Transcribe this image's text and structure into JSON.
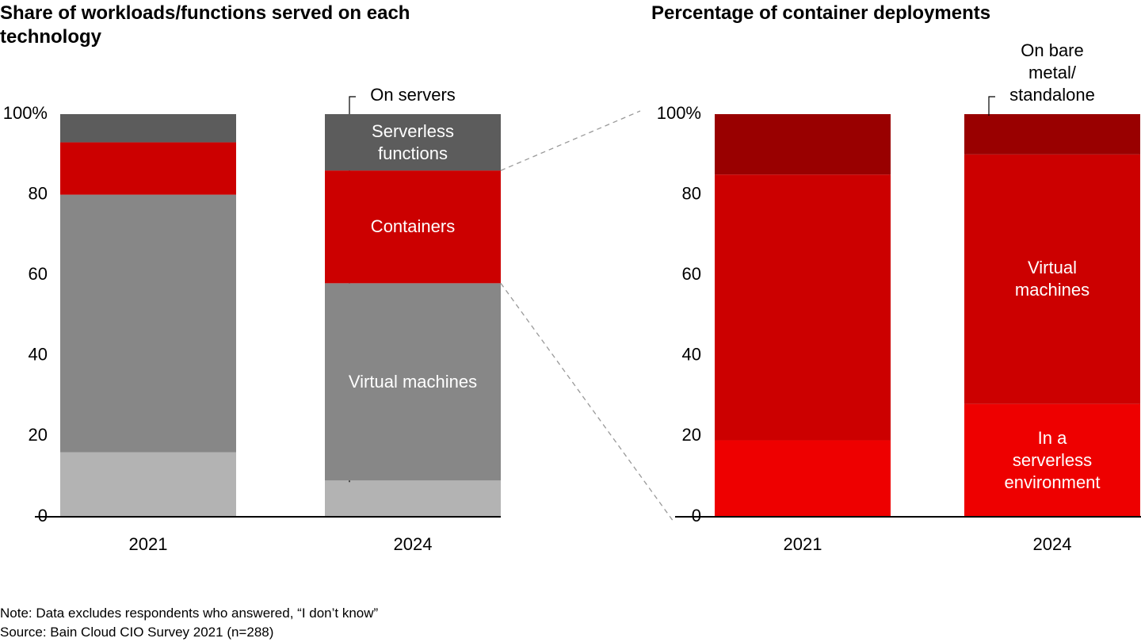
{
  "chart_data": [
    {
      "type": "bar",
      "stacked": true,
      "title": "Share of workloads/functions served on each technology",
      "categories": [
        "2021",
        "2024"
      ],
      "series": [
        {
          "name": "On servers",
          "color": "#b3b3b3",
          "values": [
            16,
            9
          ]
        },
        {
          "name": "Virtual machines",
          "color": "#878787",
          "values": [
            64,
            49
          ]
        },
        {
          "name": "Containers",
          "color": "#cc0000",
          "values": [
            13,
            28
          ]
        },
        {
          "name": "Serverless functions",
          "color": "#5c5c5c",
          "values": [
            7,
            14
          ]
        }
      ],
      "ylim": [
        0,
        100
      ],
      "yticks": [
        0,
        20,
        40,
        60,
        80,
        {
          "value": 100,
          "label": "100%"
        }
      ]
    },
    {
      "type": "bar",
      "stacked": true,
      "title": "Percentage of container deployments",
      "categories": [
        "2021",
        "2024"
      ],
      "series": [
        {
          "name": "In a serverless environment",
          "color": "#ee0000",
          "values": [
            19,
            28
          ]
        },
        {
          "name": "Virtual machines",
          "color": "#cc0000",
          "values": [
            66,
            62
          ]
        },
        {
          "name": "On bare metal/ standalone",
          "color": "#990000",
          "values": [
            15,
            10
          ]
        }
      ],
      "ylim": [
        0,
        100
      ],
      "yticks": [
        0,
        20,
        40,
        60,
        80,
        {
          "value": 100,
          "label": "100%"
        }
      ]
    }
  ],
  "notes": [
    "Note: Data excludes respondents who answered, “I don’t know”",
    "Source: Bain Cloud CIO Survey 2021 (n=288)"
  ]
}
